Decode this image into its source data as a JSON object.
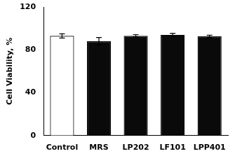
{
  "chart_data": {
    "type": "bar",
    "categories": [
      "Control",
      "MRS",
      "LP202",
      "LF101",
      "LPP401"
    ],
    "values": [
      93.0,
      88.0,
      93.0,
      94.0,
      92.5
    ],
    "errors": [
      2.0,
      3.5,
      1.2,
      1.5,
      1.2
    ],
    "colors": [
      "#ffffff",
      "#0a0a0a",
      "#0a0a0a",
      "#0a0a0a",
      "#0a0a0a"
    ],
    "ylabel": "Cell Viability, %",
    "ylim": [
      0,
      120
    ],
    "yticks": [
      0,
      40,
      80,
      120
    ],
    "grid": false
  }
}
